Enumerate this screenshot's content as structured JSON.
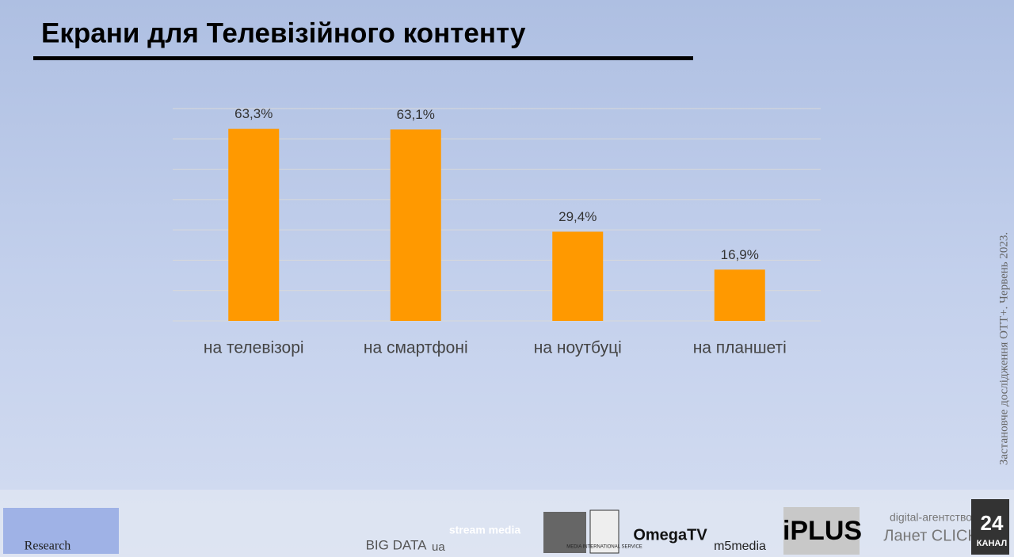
{
  "chart_data": {
    "type": "bar",
    "title": "Екрани для Телевізійного контенту",
    "categories": [
      "на телевізорі",
      "на смартфоні",
      "на ноутбуці",
      "на планшеті"
    ],
    "values": [
      63.3,
      63.1,
      29.4,
      16.9
    ],
    "value_labels": [
      "63,3%",
      "63,1%",
      "29,4%",
      "16,9%"
    ],
    "color": "#ff9900",
    "ylim": [
      0,
      70
    ],
    "yticks": [
      0,
      10,
      20,
      30,
      40,
      50,
      60,
      70
    ],
    "grid": true
  },
  "side_note": "Застановче дослідження OTT+.   Червень  2023.",
  "logos": [
    "Research",
    "BIG DATA",
    "ua",
    "stream media",
    "MEDIA INTERNATIONAL SERVICE",
    "OmegaTV",
    "m5media",
    "iPLUS",
    "digital-агентство",
    "Ланет CLICK",
    "24",
    "КАНАЛ"
  ]
}
